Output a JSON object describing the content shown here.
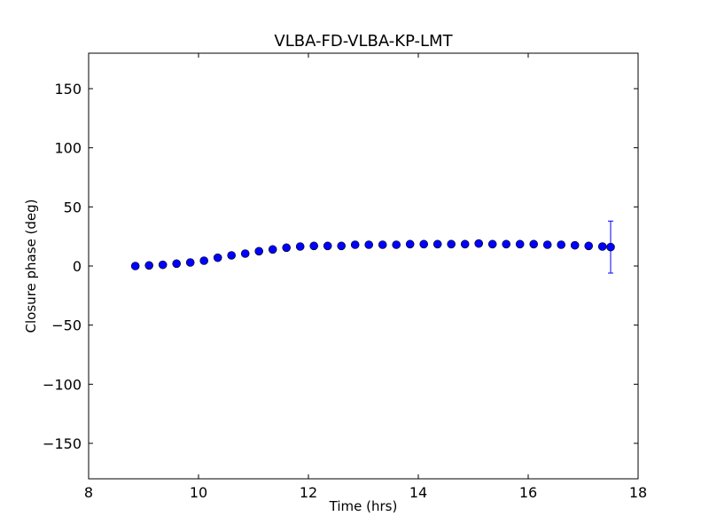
{
  "chart_data": {
    "type": "scatter",
    "title": "VLBA-FD-VLBA-KP-LMT",
    "xlabel": "Time (hrs)",
    "ylabel": "Closure phase (deg)",
    "xlim": [
      8,
      18
    ],
    "ylim": [
      -180,
      180
    ],
    "xticks": [
      8,
      10,
      12,
      14,
      16,
      18
    ],
    "xtick_labels": [
      "8",
      "10",
      "12",
      "14",
      "16",
      "18"
    ],
    "yticks": [
      -150,
      -100,
      -50,
      0,
      50,
      100,
      150
    ],
    "ytick_labels": [
      "−150",
      "−100",
      "−50",
      "0",
      "50",
      "100",
      "150"
    ],
    "grid": false,
    "marker_color": "#0000ff",
    "marker_edge_color": "#000000",
    "points": [
      {
        "x": 8.85,
        "y": 0
      },
      {
        "x": 9.1,
        "y": 0.5
      },
      {
        "x": 9.35,
        "y": 1
      },
      {
        "x": 9.6,
        "y": 2
      },
      {
        "x": 9.85,
        "y": 3
      },
      {
        "x": 10.1,
        "y": 4.5
      },
      {
        "x": 10.35,
        "y": 7
      },
      {
        "x": 10.6,
        "y": 9
      },
      {
        "x": 10.85,
        "y": 10.5
      },
      {
        "x": 11.1,
        "y": 12.5
      },
      {
        "x": 11.35,
        "y": 14
      },
      {
        "x": 11.6,
        "y": 15.5
      },
      {
        "x": 11.85,
        "y": 16.5
      },
      {
        "x": 12.1,
        "y": 17
      },
      {
        "x": 12.35,
        "y": 17
      },
      {
        "x": 12.6,
        "y": 17
      },
      {
        "x": 12.85,
        "y": 18
      },
      {
        "x": 13.1,
        "y": 18
      },
      {
        "x": 13.35,
        "y": 18
      },
      {
        "x": 13.6,
        "y": 18
      },
      {
        "x": 13.85,
        "y": 18.5
      },
      {
        "x": 14.1,
        "y": 18.5
      },
      {
        "x": 14.35,
        "y": 18.5
      },
      {
        "x": 14.6,
        "y": 18.5
      },
      {
        "x": 14.85,
        "y": 18.5
      },
      {
        "x": 15.1,
        "y": 19
      },
      {
        "x": 15.35,
        "y": 18.5
      },
      {
        "x": 15.6,
        "y": 18.5
      },
      {
        "x": 15.85,
        "y": 18.5
      },
      {
        "x": 16.1,
        "y": 18.5
      },
      {
        "x": 16.35,
        "y": 18
      },
      {
        "x": 16.6,
        "y": 18
      },
      {
        "x": 16.85,
        "y": 17.5
      },
      {
        "x": 17.1,
        "y": 17
      },
      {
        "x": 17.35,
        "y": 16.5
      },
      {
        "x": 17.5,
        "y": 16,
        "err": 22
      }
    ]
  }
}
